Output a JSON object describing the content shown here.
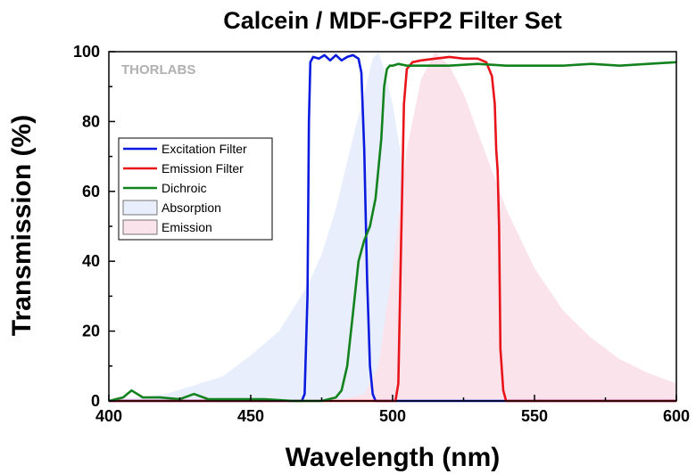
{
  "chart_data": {
    "type": "line",
    "title": "Calcein / MDF-GFP2 Filter Set",
    "xlabel": "Wavelength (nm)",
    "ylabel": "Transmission (%)",
    "xlim": [
      400,
      600
    ],
    "ylim": [
      0,
      100
    ],
    "xticks": [
      400,
      450,
      500,
      550,
      600
    ],
    "yticks": [
      0,
      20,
      40,
      60,
      80,
      100
    ],
    "watermark": "THORLABS",
    "legend_position": "middle-left",
    "grid": false,
    "series": [
      {
        "name": "Absorption",
        "kind": "area",
        "color": "#e8eefb",
        "x": [
          400,
          420,
          440,
          450,
          460,
          470,
          475,
          480,
          485,
          490,
          493,
          495,
          497,
          500,
          505,
          510,
          515,
          520,
          530,
          540,
          550,
          560,
          580,
          600
        ],
        "y": [
          0,
          2,
          7,
          13,
          20,
          33,
          42,
          55,
          72,
          88,
          98,
          100,
          95,
          85,
          60,
          45,
          30,
          20,
          10,
          5,
          2,
          1,
          0,
          0
        ]
      },
      {
        "name": "Emission",
        "kind": "area",
        "color": "#fbe3ec",
        "x": [
          400,
          480,
          490,
          495,
          500,
          505,
          510,
          515,
          520,
          525,
          530,
          540,
          550,
          560,
          570,
          580,
          590,
          600
        ],
        "y": [
          0,
          0,
          2,
          10,
          38,
          72,
          92,
          100,
          96,
          88,
          77,
          55,
          38,
          26,
          18,
          12,
          8,
          5
        ]
      },
      {
        "name": "Excitation Filter",
        "kind": "line",
        "color": "#0a1be0",
        "x": [
          400,
          468,
          469,
          470,
          470.5,
          471,
          472,
          474,
          476,
          478,
          480,
          482,
          484,
          486,
          488,
          489,
          490,
          491,
          492,
          493,
          494,
          600
        ],
        "y": [
          0,
          0,
          2,
          30,
          80,
          97,
          98.5,
          98,
          99,
          97.5,
          99,
          97.5,
          98.5,
          99,
          98,
          94,
          72,
          35,
          10,
          2,
          0,
          0
        ]
      },
      {
        "name": "Emission Filter",
        "kind": "line",
        "color": "#e8141a",
        "x": [
          400,
          501,
          502,
          503,
          504,
          505,
          507,
          510,
          515,
          520,
          525,
          530,
          533,
          535,
          536,
          536.5,
          537,
          537.5,
          538,
          539,
          540,
          600
        ],
        "y": [
          0,
          0,
          5,
          45,
          85,
          95,
          97,
          97.5,
          98,
          98.5,
          98,
          98,
          97,
          93,
          85,
          72,
          66,
          50,
          15,
          3,
          0,
          0
        ]
      },
      {
        "name": "Dichroic",
        "kind": "line",
        "color": "#12821e",
        "x": [
          400,
          405,
          408,
          412,
          418,
          425,
          430,
          435,
          445,
          455,
          465,
          470,
          475,
          480,
          482,
          484,
          486,
          488,
          490,
          492,
          494,
          496,
          497,
          498,
          499,
          500,
          502,
          505,
          510,
          520,
          530,
          540,
          550,
          560,
          570,
          580,
          590,
          600
        ],
        "y": [
          0,
          1,
          3,
          1,
          1,
          0.5,
          2,
          0.5,
          0.5,
          0.5,
          0,
          0,
          0,
          1,
          3,
          10,
          25,
          40,
          46,
          50,
          58,
          75,
          90,
          95,
          96,
          96,
          96.5,
          96,
          96,
          96,
          96.5,
          96,
          96,
          96,
          96.5,
          96,
          96.5,
          97
        ]
      }
    ]
  }
}
